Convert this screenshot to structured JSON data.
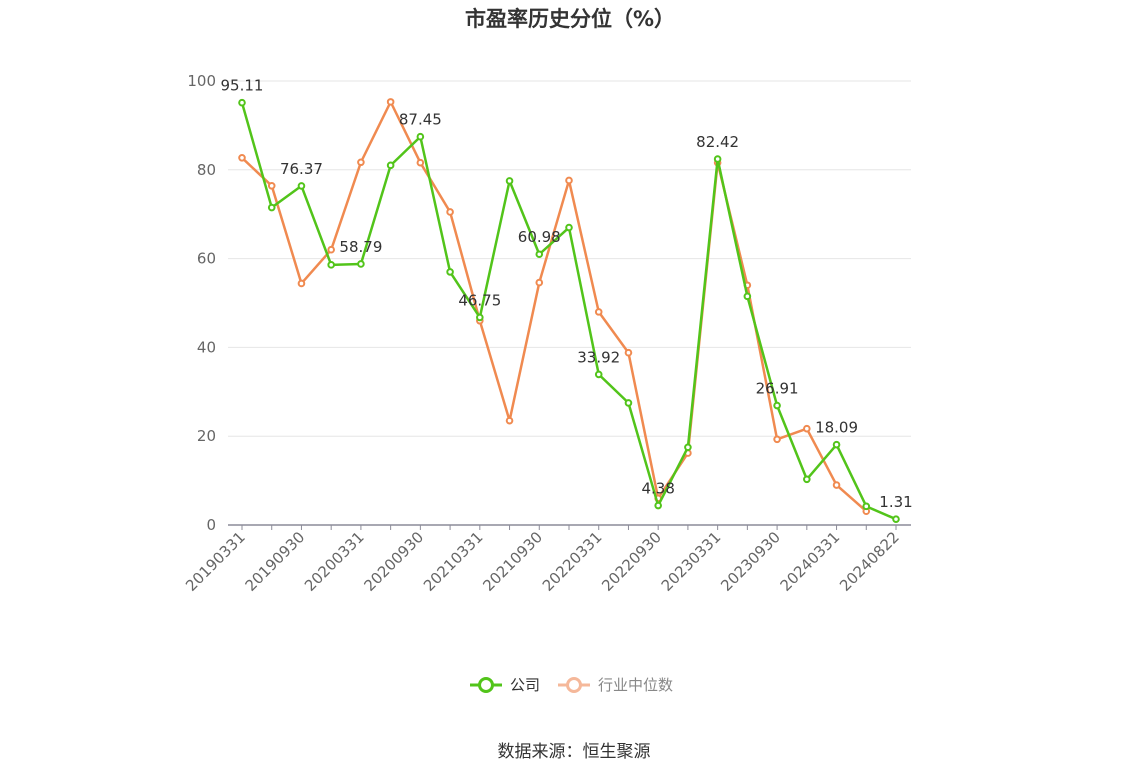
{
  "chart_data": {
    "type": "line",
    "title": "市盈率历史分位（%）",
    "source": "数据来源：恒生聚源",
    "ylim": [
      0,
      100
    ],
    "yticks": [
      0,
      20,
      40,
      60,
      80,
      100
    ],
    "x": [
      "20190331",
      "20190630",
      "20190930",
      "20191231",
      "20200331",
      "20200630",
      "20200930",
      "20201231",
      "20210331",
      "20210630",
      "20210930",
      "20211231",
      "20220331",
      "20220630",
      "20220930",
      "20221231",
      "20230331",
      "20230630",
      "20230930",
      "20231231",
      "20240331",
      "20240630",
      "20240822"
    ],
    "xtick_labels": [
      "20190331",
      "20190930",
      "20200331",
      "20200930",
      "20210331",
      "20210930",
      "20220331",
      "20220930",
      "20230331",
      "20230930",
      "20240331",
      "20240822"
    ],
    "legend_position": "bottom",
    "series": [
      {
        "name": "公司",
        "color": "#52c41a",
        "values": [
          95.11,
          71.5,
          76.37,
          58.6,
          58.79,
          81.0,
          87.45,
          57.0,
          46.75,
          77.5,
          60.98,
          67.0,
          33.92,
          27.5,
          4.38,
          17.5,
          82.42,
          51.5,
          26.91,
          10.3,
          18.09,
          4.2,
          1.31
        ],
        "labels": {
          "0": "95.11",
          "2": "76.37",
          "4": "58.79",
          "6": "87.45",
          "8": "46.75",
          "10": "60.98",
          "12": "33.92",
          "14": "4.38",
          "16": "82.42",
          "18": "26.91",
          "20": "18.09",
          "22": "1.31"
        }
      },
      {
        "name": "行业中位数",
        "color": "#f08a50",
        "values": [
          82.7,
          76.4,
          54.4,
          62.0,
          81.7,
          95.3,
          81.6,
          70.5,
          46.0,
          23.5,
          54.6,
          77.6,
          48.0,
          38.8,
          6.0,
          16.2,
          81.6,
          54.0,
          19.3,
          21.7,
          9.0,
          3.1,
          null
        ]
      }
    ]
  }
}
